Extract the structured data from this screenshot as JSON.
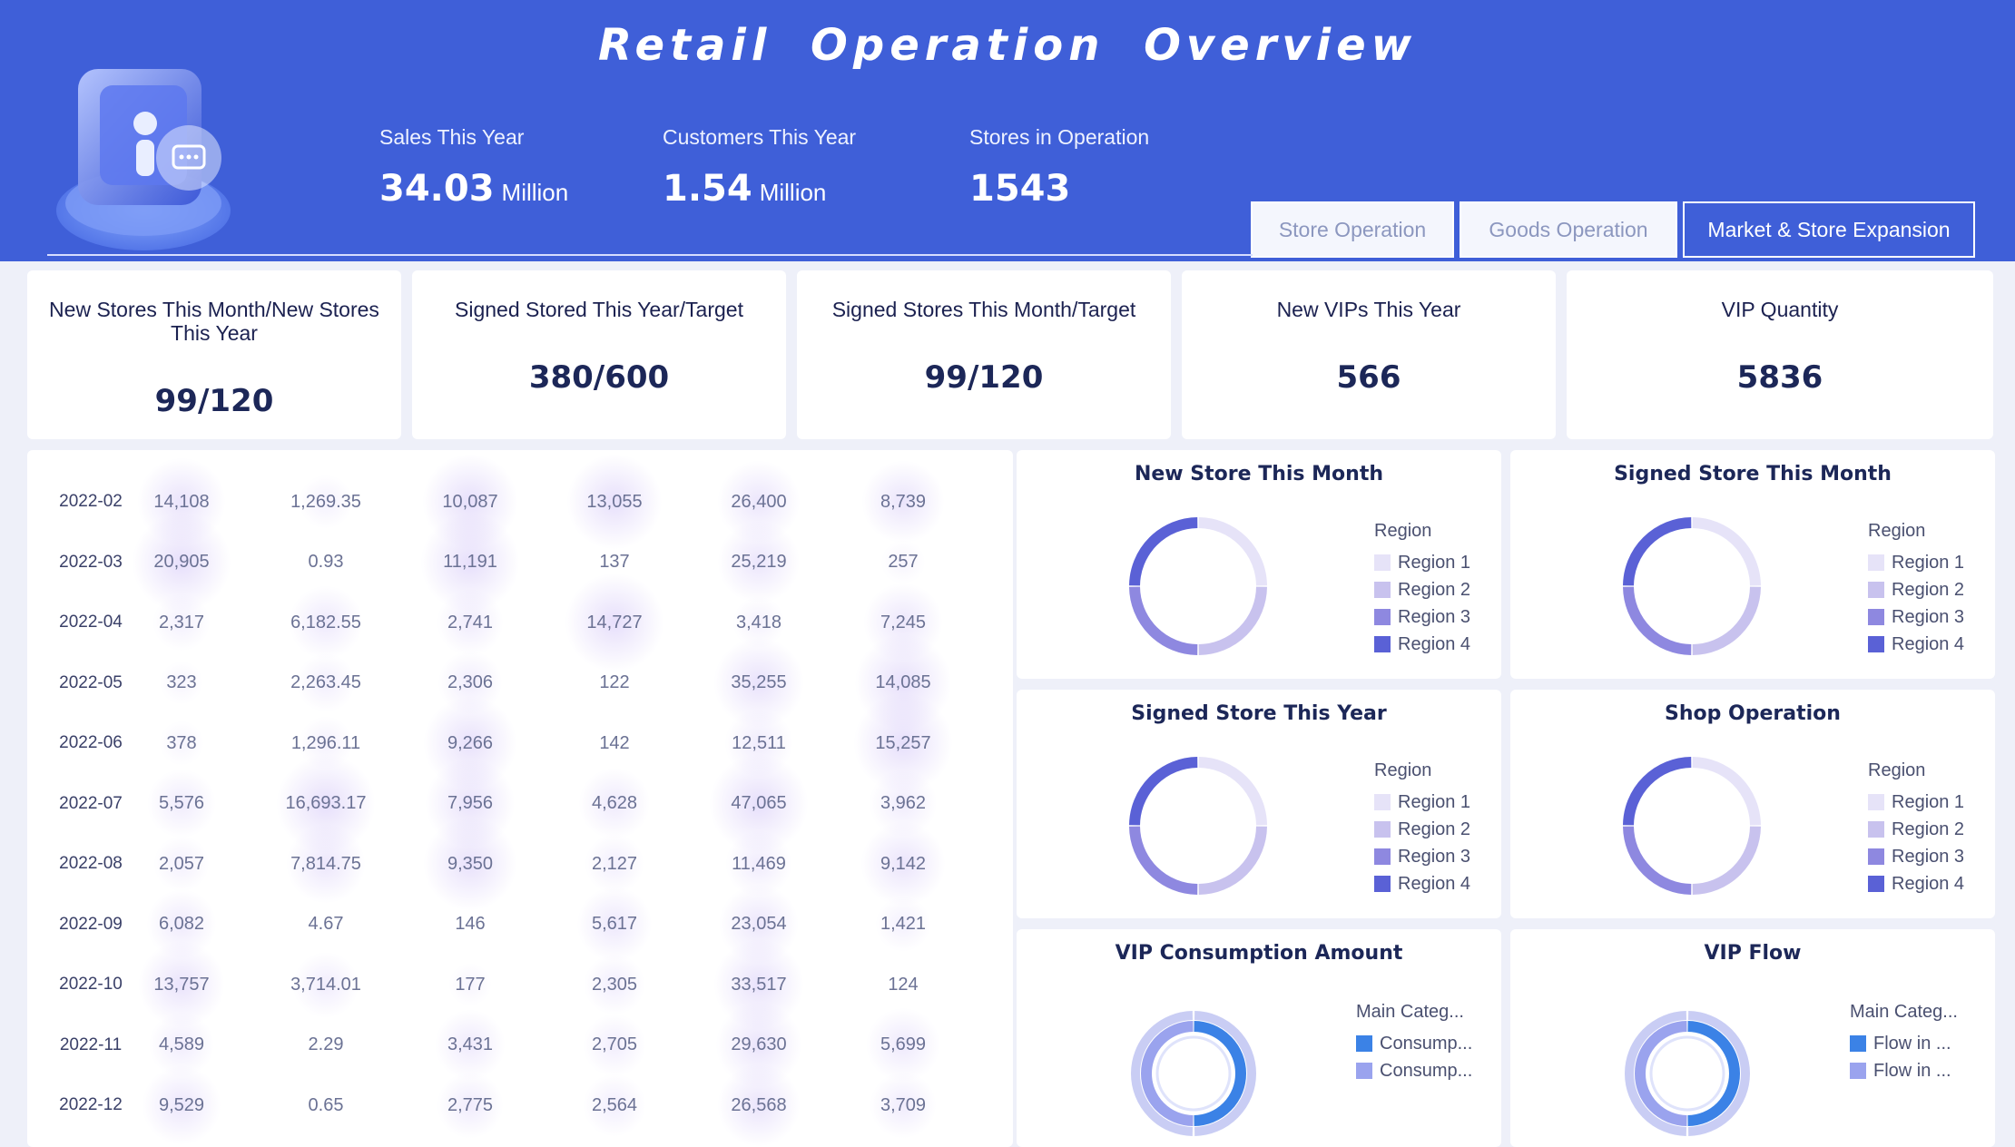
{
  "header": {
    "title": "Retail Operation Overview",
    "kpis": [
      {
        "label": "Sales This Year",
        "value": "34.03",
        "unit": "Million"
      },
      {
        "label": "Customers This Year",
        "value": "1.54",
        "unit": "Million"
      },
      {
        "label": "Stores in Operation",
        "value": "1543",
        "unit": ""
      }
    ],
    "tabs": [
      {
        "label": "Store Operation",
        "active": false
      },
      {
        "label": "Goods Operation",
        "active": false
      },
      {
        "label": "Market & Store Expansion",
        "active": true
      }
    ],
    "logo_icon": "store-user-badge-icon"
  },
  "cards": [
    {
      "label": "New Stores This Month/New Stores This Year",
      "value": "99/120"
    },
    {
      "label": "Signed Stored This Year/Target",
      "value": "380/600"
    },
    {
      "label": "Signed Stores This Month/Target",
      "value": "99/120"
    },
    {
      "label": "New VIPs This Year",
      "value": "566"
    },
    {
      "label": "VIP Quantity",
      "value": "5836"
    }
  ],
  "table": {
    "rows": [
      {
        "date": "2022-02",
        "cells": [
          "14,108",
          "1,269.35",
          "10,087",
          "13,055",
          "26,400",
          "8,739"
        ]
      },
      {
        "date": "2022-03",
        "cells": [
          "20,905",
          "0.93",
          "11,191",
          "137",
          "25,219",
          "257"
        ]
      },
      {
        "date": "2022-04",
        "cells": [
          "2,317",
          "6,182.55",
          "2,741",
          "14,727",
          "3,418",
          "7,245"
        ]
      },
      {
        "date": "2022-05",
        "cells": [
          "323",
          "2,263.45",
          "2,306",
          "122",
          "35,255",
          "14,085"
        ]
      },
      {
        "date": "2022-06",
        "cells": [
          "378",
          "1,296.11",
          "9,266",
          "142",
          "12,511",
          "15,257"
        ]
      },
      {
        "date": "2022-07",
        "cells": [
          "5,576",
          "16,693.17",
          "7,956",
          "4,628",
          "47,065",
          "3,962"
        ]
      },
      {
        "date": "2022-08",
        "cells": [
          "2,057",
          "7,814.75",
          "9,350",
          "2,127",
          "11,469",
          "9,142"
        ]
      },
      {
        "date": "2022-09",
        "cells": [
          "6,082",
          "4.67",
          "146",
          "5,617",
          "23,054",
          "1,421"
        ]
      },
      {
        "date": "2022-10",
        "cells": [
          "13,757",
          "3,714.01",
          "177",
          "2,305",
          "33,517",
          "124"
        ]
      },
      {
        "date": "2022-11",
        "cells": [
          "4,589",
          "2.29",
          "3,431",
          "2,705",
          "29,630",
          "5,699"
        ]
      },
      {
        "date": "2022-12",
        "cells": [
          "9,529",
          "0.65",
          "2,775",
          "2,564",
          "26,568",
          "3,709"
        ]
      }
    ],
    "bubble_color": "#a78bf0"
  },
  "chart_data": [
    {
      "type": "pie",
      "title": "New Store This Month",
      "legend_title": "Region",
      "categories": [
        "Region 1",
        "Region 2",
        "Region 3",
        "Region 4"
      ],
      "values": [
        25,
        25,
        25,
        25
      ],
      "colors": [
        "#e6e3f8",
        "#c8c2ee",
        "#8e88e0",
        "#5a61d6"
      ]
    },
    {
      "type": "pie",
      "title": "Signed Store This Month",
      "legend_title": "Region",
      "categories": [
        "Region 1",
        "Region 2",
        "Region 3",
        "Region 4"
      ],
      "values": [
        25,
        25,
        25,
        25
      ],
      "colors": [
        "#e6e3f8",
        "#c8c2ee",
        "#8e88e0",
        "#5a61d6"
      ]
    },
    {
      "type": "pie",
      "title": "Signed Store This Year",
      "legend_title": "Region",
      "categories": [
        "Region 1",
        "Region 2",
        "Region 3",
        "Region 4"
      ],
      "values": [
        25,
        25,
        25,
        25
      ],
      "colors": [
        "#e6e3f8",
        "#c8c2ee",
        "#8e88e0",
        "#5a61d6"
      ]
    },
    {
      "type": "pie",
      "title": "Shop Operation",
      "legend_title": "Region",
      "categories": [
        "Region 1",
        "Region 2",
        "Region 3",
        "Region 4"
      ],
      "values": [
        25,
        25,
        25,
        25
      ],
      "colors": [
        "#e6e3f8",
        "#c8c2ee",
        "#8e88e0",
        "#5a61d6"
      ]
    },
    {
      "type": "pie",
      "title": "VIP Consumption Amount",
      "legend_title": "Main Categ...",
      "categories": [
        "Consump...",
        "Consump..."
      ],
      "values": [
        50,
        50
      ],
      "colors": [
        "#3b82e6",
        "#9aa3ee"
      ]
    },
    {
      "type": "pie",
      "title": "VIP Flow",
      "legend_title": "Main Categ...",
      "categories": [
        "Flow in ...",
        "Flow in ..."
      ],
      "values": [
        50,
        50
      ],
      "colors": [
        "#3b82e6",
        "#9aa3ee"
      ]
    }
  ]
}
